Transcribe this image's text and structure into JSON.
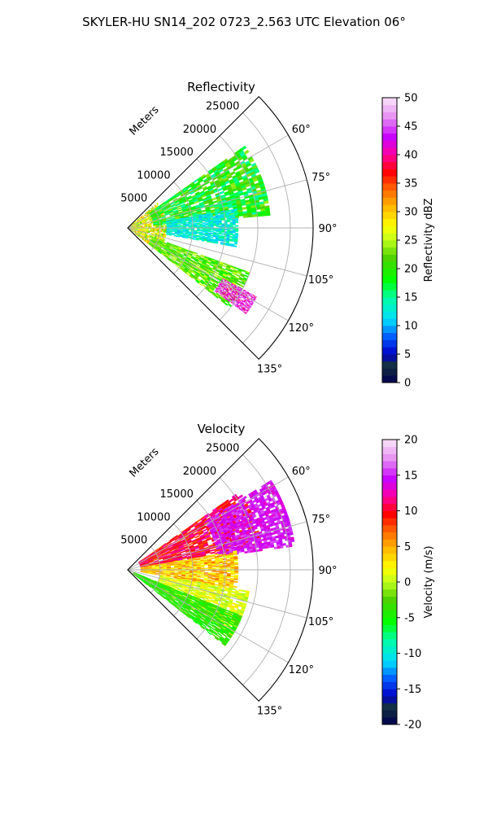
{
  "figure": {
    "title": "SKYLER-HU  SN14_202  0723_2.563 UTC Elevation 06°"
  },
  "chart_data": [
    {
      "type": "heatmap",
      "title": "Reflectivity",
      "projection": "polar-sector",
      "radial_label": "Meters",
      "r_ticks": [
        5000,
        10000,
        15000,
        20000,
        25000
      ],
      "r_lim": [
        0,
        28500
      ],
      "theta_ticks": [
        "60°",
        "75°",
        "90°",
        "105°",
        "120°",
        "135°"
      ],
      "theta_tick_values": [
        60,
        75,
        90,
        105,
        120,
        135
      ],
      "theta_lim": [
        45,
        135
      ],
      "grid": true,
      "colorbar": {
        "label": "Reflectivity dBZ",
        "ticks": [
          0,
          5,
          10,
          15,
          20,
          25,
          30,
          35,
          40,
          45,
          50
        ],
        "range": [
          0,
          50
        ],
        "levels": 40
      },
      "echo_regions": [
        {
          "region": "near-radar",
          "r_range": [
            0,
            6000
          ],
          "theta_range": [
            50,
            128
          ],
          "value_range": [
            22,
            32
          ]
        },
        {
          "region": "northern-band",
          "r_range": [
            4000,
            22000
          ],
          "theta_range": [
            55,
            85
          ],
          "value_range": [
            14,
            24
          ]
        },
        {
          "region": "central-cyan",
          "r_range": [
            6000,
            17000
          ],
          "theta_range": [
            80,
            100
          ],
          "value_range": [
            10,
            16
          ]
        },
        {
          "region": "southern-band",
          "r_range": [
            4000,
            20000
          ],
          "theta_range": [
            110,
            128
          ],
          "value_range": [
            18,
            26
          ]
        },
        {
          "region": "storm-core",
          "r_range": [
            16500,
            22500
          ],
          "theta_range": [
            118,
            126
          ],
          "value_range": [
            38,
            50
          ]
        }
      ]
    },
    {
      "type": "heatmap",
      "title": "Velocity",
      "projection": "polar-sector",
      "radial_label": "Meters",
      "r_ticks": [
        5000,
        10000,
        15000,
        20000,
        25000
      ],
      "r_lim": [
        0,
        28500
      ],
      "theta_ticks": [
        "60°",
        "75°",
        "90°",
        "105°",
        "120°",
        "135°"
      ],
      "theta_tick_values": [
        60,
        75,
        90,
        105,
        120,
        135
      ],
      "theta_lim": [
        45,
        135
      ],
      "grid": true,
      "colorbar": {
        "label": "Velocity (m/s)",
        "ticks": [
          -20,
          -15,
          -10,
          -5,
          0,
          5,
          10,
          15,
          20
        ],
        "range": [
          -20,
          20
        ],
        "levels": 40
      },
      "echo_regions": [
        {
          "region": "north-inbound",
          "r_range": [
            2000,
            21000
          ],
          "theta_range": [
            55,
            80
          ],
          "value_range": [
            7,
            13
          ]
        },
        {
          "region": "northeast-far",
          "r_range": [
            14000,
            26000
          ],
          "theta_range": [
            58,
            82
          ],
          "value_range": [
            13,
            16
          ]
        },
        {
          "region": "central",
          "r_range": [
            2000,
            17000
          ],
          "theta_range": [
            80,
            100
          ],
          "value_range": [
            1,
            7
          ]
        },
        {
          "region": "south-yellow",
          "r_range": [
            5000,
            19000
          ],
          "theta_range": [
            100,
            122
          ],
          "value_range": [
            -1,
            3
          ]
        },
        {
          "region": "southwest-green",
          "r_range": [
            1000,
            19000
          ],
          "theta_range": [
            112,
            128
          ],
          "value_range": [
            -6,
            -2
          ]
        }
      ]
    }
  ]
}
